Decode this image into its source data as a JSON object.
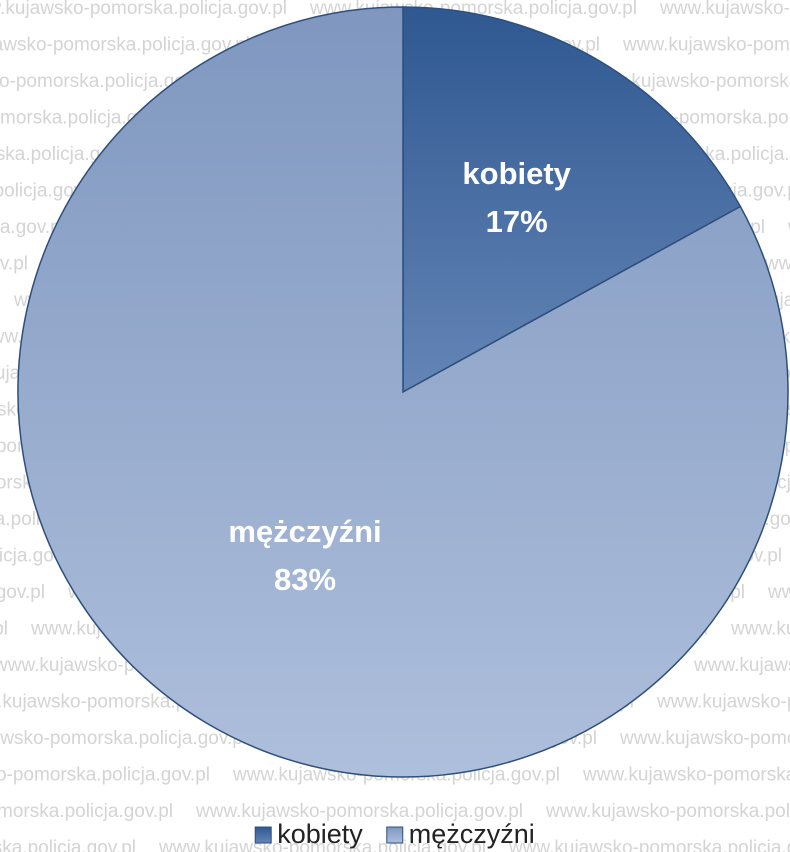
{
  "watermark": "www.kujawsko-pomorska.policja.gov.pl",
  "chart_data": {
    "type": "pie",
    "categories": [
      "kobiety",
      "mężczyźni"
    ],
    "values": [
      17,
      83
    ],
    "value_labels": [
      "17%",
      "83%"
    ],
    "colors": [
      "#3f679d",
      "#97abcd"
    ],
    "legend": "bottom"
  }
}
